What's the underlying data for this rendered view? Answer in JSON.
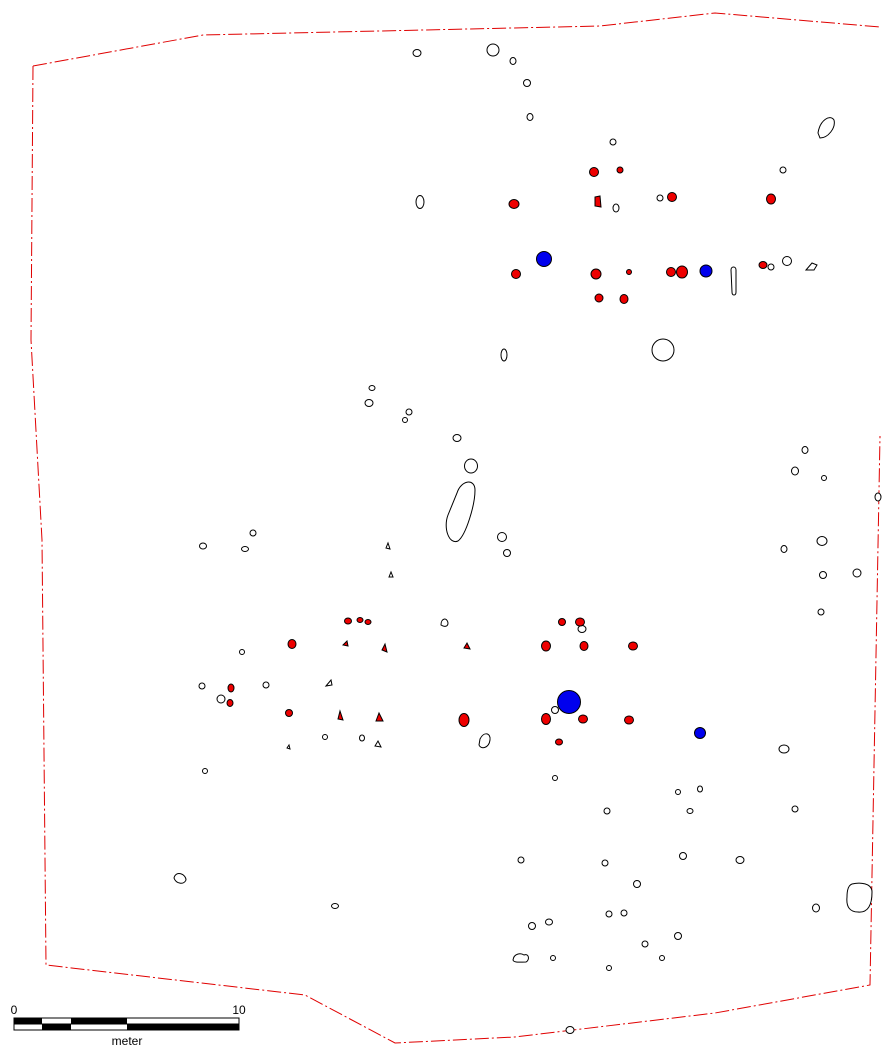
{
  "scale_bar": {
    "min_label": "0",
    "max_label": "10",
    "unit_label": "meter"
  },
  "legend_colors": {
    "boundary": "#e00000",
    "red_feature": "#ee0000",
    "blue_feature": "#0000ee",
    "outline_feature": "#000000"
  }
}
